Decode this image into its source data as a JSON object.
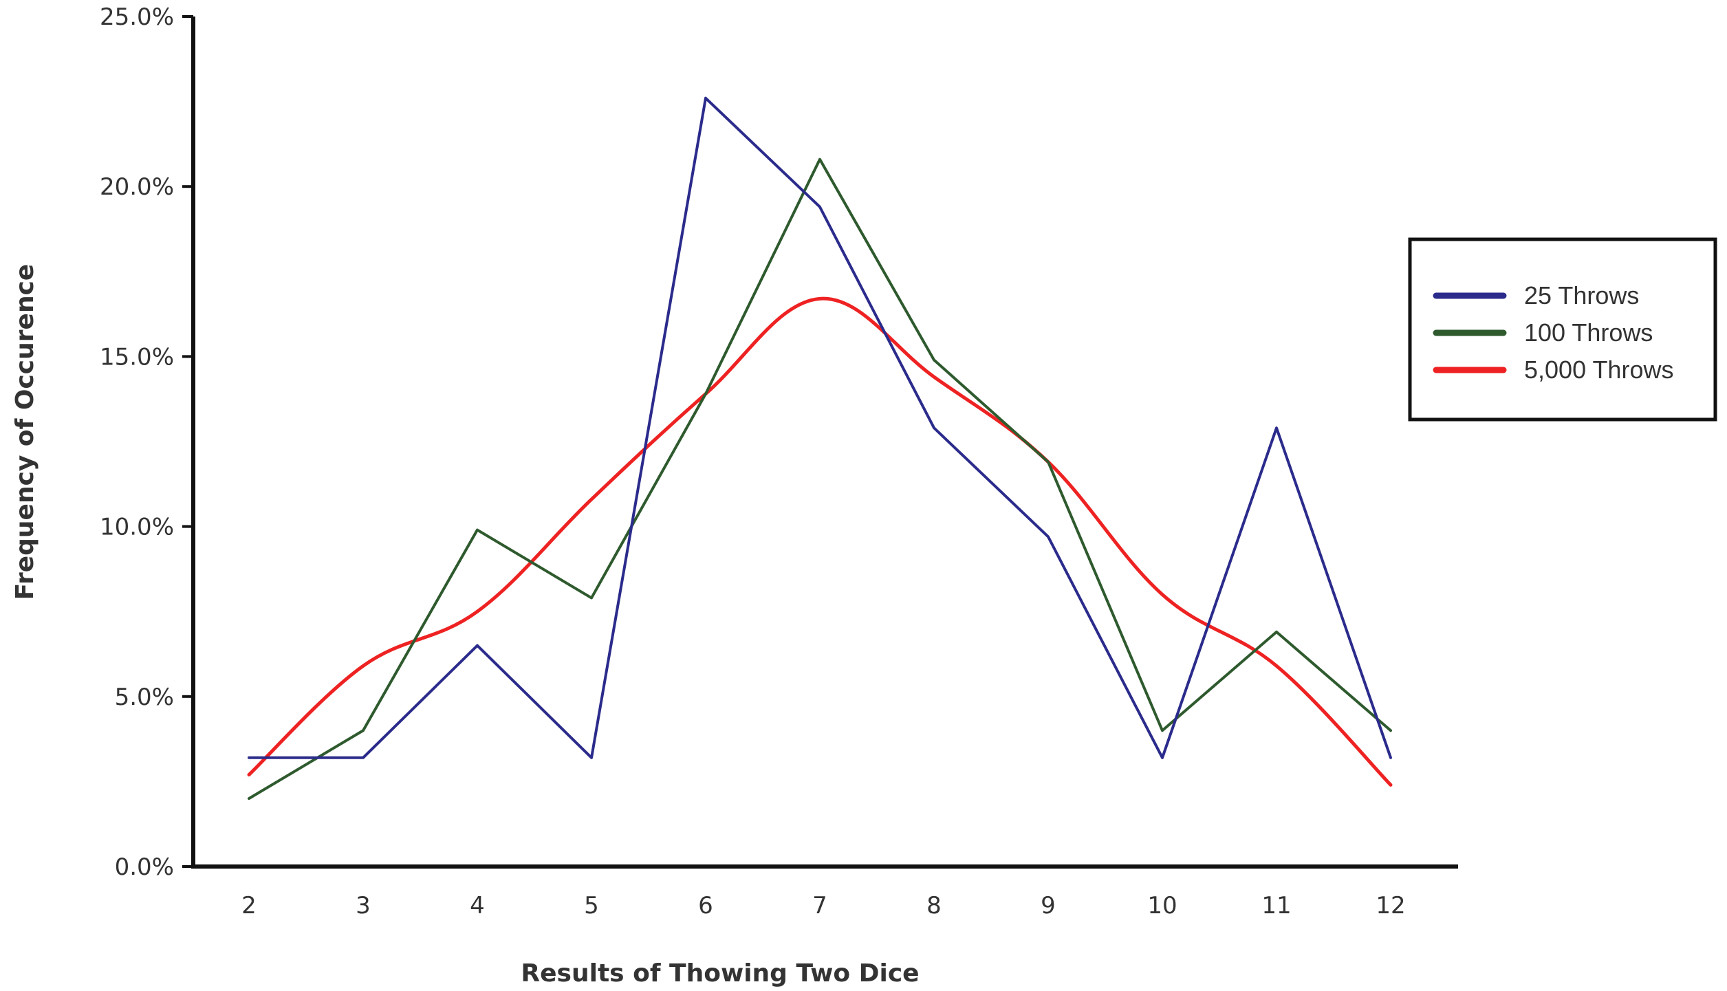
{
  "chart_data": {
    "type": "line",
    "title": "",
    "xlabel": "Results of Thowing Two Dice",
    "ylabel": "Frequency of Occurence",
    "categories": [
      "2",
      "3",
      "4",
      "5",
      "6",
      "7",
      "8",
      "9",
      "10",
      "11",
      "12"
    ],
    "ylim": [
      0,
      25
    ],
    "yticks": [
      "0.0%",
      "5.0%",
      "10.0%",
      "15.0%",
      "20.0%",
      "25.0%"
    ],
    "ytick_values": [
      0,
      5,
      10,
      15,
      20,
      25
    ],
    "grid": false,
    "legend_position": "right",
    "series": [
      {
        "name": "25 Throws",
        "color": "#2b2b8c",
        "smooth": false,
        "values": [
          3.2,
          3.2,
          6.5,
          3.2,
          22.6,
          19.4,
          12.9,
          9.7,
          3.2,
          12.9,
          3.2
        ]
      },
      {
        "name": "100 Throws",
        "color": "#2e5a2e",
        "smooth": false,
        "values": [
          2.0,
          4.0,
          9.9,
          7.9,
          13.9,
          20.8,
          14.9,
          11.9,
          4.0,
          6.9,
          4.0
        ]
      },
      {
        "name": "5,000 Throws",
        "color": "#ee2222",
        "smooth": true,
        "values": [
          2.7,
          5.9,
          7.5,
          10.8,
          13.9,
          16.7,
          14.4,
          11.9,
          8.0,
          5.9,
          2.4
        ]
      }
    ]
  }
}
